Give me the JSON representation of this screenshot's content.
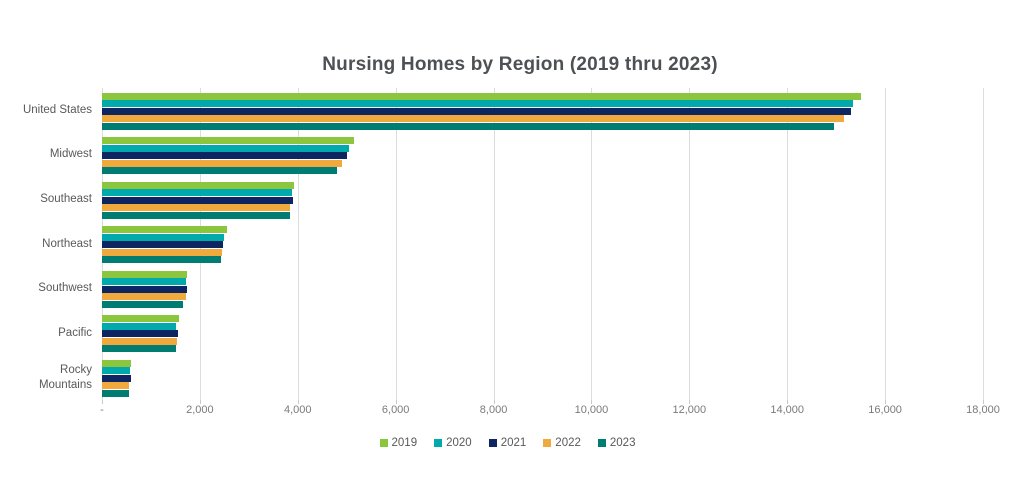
{
  "title": "Nursing Homes by Region (2019 thru 2023)",
  "chart_data": {
    "type": "bar",
    "orientation": "horizontal",
    "title": "Nursing Homes by Region (2019 thru 2023)",
    "categories": [
      "United States",
      "Midwest",
      "Southeast",
      "Northeast",
      "Southwest",
      "Pacific",
      "Rocky Mountains"
    ],
    "series": [
      {
        "name": "2019",
        "color": "#8CC63F",
        "values": [
          15500,
          5150,
          3930,
          2550,
          1730,
          1580,
          590
        ]
      },
      {
        "name": "2020",
        "color": "#00A9AC",
        "values": [
          15350,
          5050,
          3890,
          2500,
          1720,
          1520,
          570
        ]
      },
      {
        "name": "2021",
        "color": "#0D2561",
        "values": [
          15300,
          5000,
          3900,
          2480,
          1740,
          1550,
          590
        ]
      },
      {
        "name": "2022",
        "color": "#F0A93C",
        "values": [
          15150,
          4900,
          3850,
          2450,
          1720,
          1530,
          560
        ]
      },
      {
        "name": "2023",
        "color": "#007D72",
        "values": [
          14950,
          4800,
          3850,
          2430,
          1660,
          1510,
          550
        ]
      }
    ],
    "x_axis": {
      "min": 0,
      "max": 18000,
      "tick_step": 2000,
      "tick_labels": [
        "-",
        "2,000",
        "4,000",
        "6,000",
        "8,000",
        "10,000",
        "12,000",
        "14,000",
        "16,000",
        "18,000"
      ]
    },
    "grid": "vertical",
    "legend_position": "bottom"
  }
}
